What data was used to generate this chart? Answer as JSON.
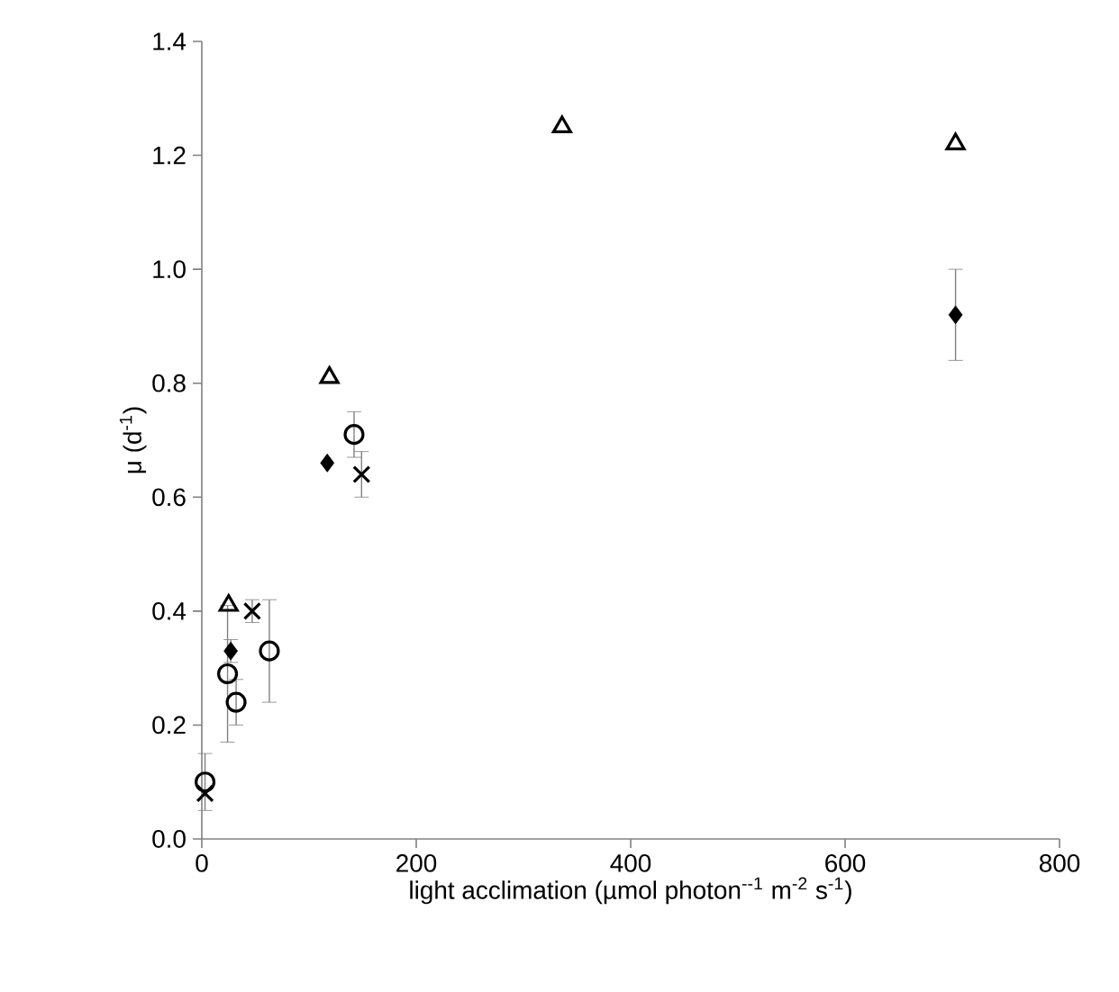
{
  "chart_data": {
    "type": "scatter",
    "xlabel": "light acclimation  (µmol photon$^{--1}$ m$^{-2}$  s$^{-1}$)",
    "ylabel": "μ (d$^{-1}$)",
    "xlim": [
      0,
      800
    ],
    "ylim": [
      0,
      1.4
    ],
    "xticks": [
      0,
      200,
      400,
      600,
      800
    ],
    "yticks": [
      {
        "value": 0,
        "label": "0.0"
      },
      {
        "value": 0.2,
        "label": "0.2"
      },
      {
        "value": 0.4,
        "label": "0.4"
      },
      {
        "value": 0.6,
        "label": "0.6"
      },
      {
        "value": 0.8,
        "label": "0.8"
      },
      {
        "value": 1.0,
        "label": "1.0"
      },
      {
        "value": 1.2,
        "label": "1.2"
      },
      {
        "value": 1.4,
        "label": "1.4"
      }
    ],
    "grid": false,
    "series": [
      {
        "color": "#000000",
        "marker": "triangle",
        "x": [
          25,
          119,
          336,
          703
        ],
        "values": [
          0.41,
          0.81,
          1.25,
          1.22
        ]
      },
      {
        "color": "#000000",
        "marker": "diamond",
        "x": [
          27,
          117,
          703
        ],
        "values": [
          0.33,
          0.66,
          0.92
        ],
        "errors": [
          0.02,
          null,
          0.08
        ]
      },
      {
        "color": "#000000",
        "marker": "circle",
        "x": [
          3,
          24,
          32,
          63,
          142
        ],
        "values": [
          0.1,
          0.29,
          0.24,
          0.33,
          0.71
        ],
        "errors": [
          0.05,
          0.12,
          0.04,
          0.09,
          0.04
        ]
      },
      {
        "color": "#000000",
        "marker": "cross",
        "x": [
          3,
          47,
          149
        ],
        "values": [
          0.08,
          0.4,
          0.64
        ],
        "errors": [
          null,
          0.02,
          0.04
        ]
      }
    ]
  }
}
